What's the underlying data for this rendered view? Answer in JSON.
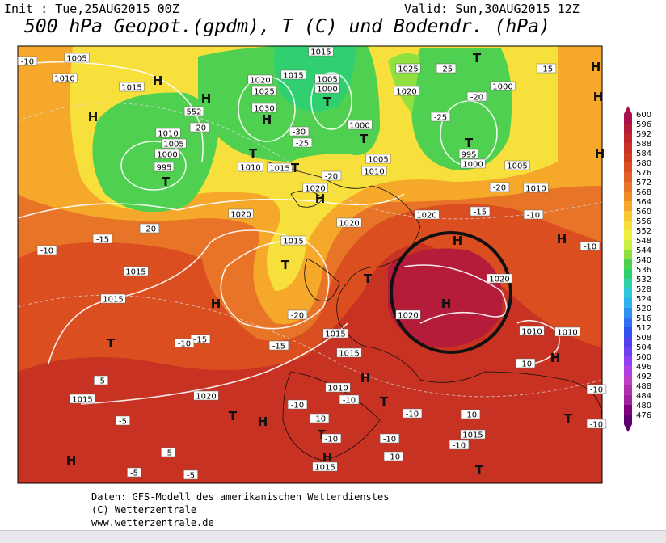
{
  "header": {
    "init": "Init : Tue,25AUG2015 00Z",
    "valid": "Valid: Sun,30AUG2015 12Z",
    "title": "500 hPa Geopot.(gpdm), T (C) und Bodendr. (hPa)"
  },
  "footer": {
    "source": "Daten: GFS-Modell des amerikanischen Wetterdienstes",
    "copyright": "(C) Wetterzentrale",
    "url": "www.wetterzentrale.de"
  },
  "legend": [
    {
      "label": "600",
      "color": "#a8124e"
    },
    {
      "label": "596",
      "color": "#b41c3a"
    },
    {
      "label": "592",
      "color": "#c0262c"
    },
    {
      "label": "588",
      "color": "#c83222"
    },
    {
      "label": "584",
      "color": "#d03e20"
    },
    {
      "label": "580",
      "color": "#da4e20"
    },
    {
      "label": "576",
      "color": "#e26024"
    },
    {
      "label": "572",
      "color": "#e87428"
    },
    {
      "label": "568",
      "color": "#f08c28"
    },
    {
      "label": "564",
      "color": "#f5a82a"
    },
    {
      "label": "560",
      "color": "#f8c830"
    },
    {
      "label": "556",
      "color": "#f8e03c"
    },
    {
      "label": "552",
      "color": "#f0f040"
    },
    {
      "label": "548",
      "color": "#c8f040"
    },
    {
      "label": "544",
      "color": "#90e040"
    },
    {
      "label": "540",
      "color": "#50d050"
    },
    {
      "label": "536",
      "color": "#30d070"
    },
    {
      "label": "532",
      "color": "#30d0a8"
    },
    {
      "label": "528",
      "color": "#30c8d8"
    },
    {
      "label": "524",
      "color": "#30b0ec"
    },
    {
      "label": "520",
      "color": "#3090f0"
    },
    {
      "label": "516",
      "color": "#3070f0"
    },
    {
      "label": "512",
      "color": "#3050f0"
    },
    {
      "label": "508",
      "color": "#5040f0"
    },
    {
      "label": "504",
      "color": "#7040f0"
    },
    {
      "label": "500",
      "color": "#9040f0"
    },
    {
      "label": "496",
      "color": "#b040e0"
    },
    {
      "label": "492",
      "color": "#c040c8"
    },
    {
      "label": "488",
      "color": "#b030b0"
    },
    {
      "label": "484",
      "color": "#a020a0"
    },
    {
      "label": "480",
      "color": "#800080"
    },
    {
      "label": "476",
      "color": "#600070"
    }
  ],
  "map_labels": [
    "1005",
    "1010",
    "1015",
    "H",
    "H",
    "H",
    "1010",
    "1005",
    "1000",
    "995",
    "T",
    "552",
    "-20",
    "1020",
    "1025",
    "1030",
    "H",
    "1015",
    "1015",
    "1005",
    "1000",
    "T",
    "-30",
    "-25",
    "1000",
    "T",
    "T",
    "1025",
    "-25",
    "-15",
    "H",
    "1020",
    "1000",
    "-20",
    "-25",
    "T",
    "995",
    "1000",
    "1005",
    "1010",
    "-20",
    "T",
    "1010",
    "1015",
    "T",
    "-20",
    "1010",
    "1005",
    "1020",
    "H",
    "1020",
    "1020",
    "1020",
    "-15",
    "-10",
    "-20",
    "-15",
    "-10",
    "1015",
    "T",
    "1015",
    "-20",
    "H",
    "T",
    "H",
    "H",
    "1020",
    "H",
    "1020",
    "1015",
    "T",
    "-15",
    "-10",
    "-15",
    "1015",
    "1015",
    "1010",
    "1010",
    "H",
    "-10",
    "-5",
    "H",
    "1010",
    "1015",
    "1020",
    "-10",
    "-10",
    "T",
    "H",
    "T",
    "-5",
    "-10",
    "-10",
    "-10",
    "T",
    "T",
    "-10",
    "-10",
    "1015",
    "-10",
    "H",
    "-5",
    "-5",
    "-5",
    "H",
    "1015",
    "-10",
    "T",
    "-10",
    "-10",
    "-10",
    "H",
    "H",
    "-10"
  ]
}
